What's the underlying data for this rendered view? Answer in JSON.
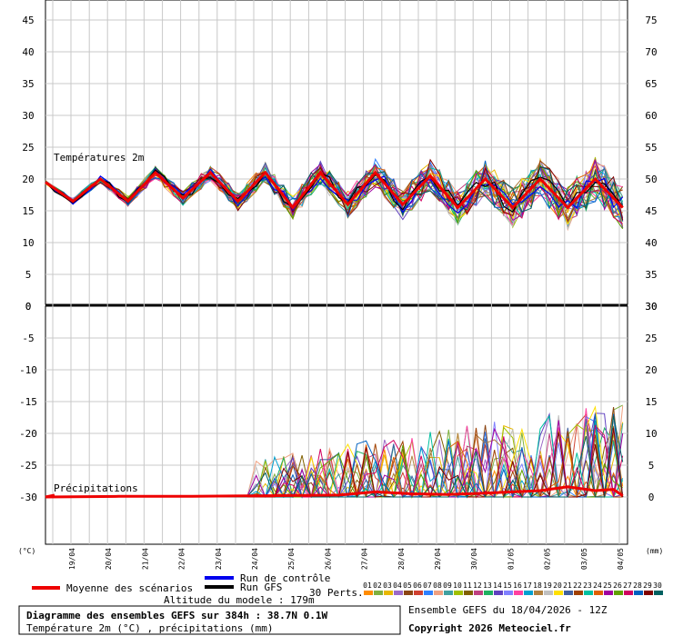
{
  "chart_data": {
    "type": "line",
    "panels": [
      {
        "name": "temperature",
        "label": "Températures 2m",
        "left_axis_ticks": [
          "45",
          "40",
          "35",
          "30",
          "25",
          "20",
          "15",
          "10",
          "5",
          "0"
        ],
        "right_axis_ticks": [
          "75",
          "70",
          "65",
          "60",
          "55",
          "50",
          "45",
          "40",
          "35",
          "30"
        ],
        "ylim": [
          0,
          47
        ],
        "series": [
          {
            "name": "Moyenne des scénarios",
            "color": "#ee0000",
            "x": [
              0,
              0.75,
              1.5,
              2.25,
              3,
              3.75,
              4.5,
              5.25,
              6,
              6.75,
              7.5,
              8.25,
              9,
              9.75,
              10.5,
              11.25,
              12,
              12.75,
              13.5,
              14.25,
              15,
              15.75
            ],
            "values": [
              19.5,
              16.5,
              20,
              16.5,
              21,
              17,
              21,
              16.5,
              21,
              15.5,
              21,
              16,
              21,
              16,
              20.5,
              15.5,
              20,
              15.5,
              20,
              15.5,
              20,
              15.5
            ]
          }
        ]
      },
      {
        "name": "precipitation",
        "label": "Précipitations",
        "left_axis_ticks": [
          "0",
          "-5",
          "-10",
          "-15",
          "-20",
          "-25",
          "-30"
        ],
        "right_axis_ticks": [
          "30",
          "25",
          "20",
          "15",
          "10",
          "5",
          "0"
        ],
        "ylim": [
          0,
          30
        ],
        "series": [
          {
            "name": "Moyenne des scénarios",
            "color": "#ee0000",
            "x": [
              0,
              2,
              4,
              6,
              8,
              9,
              10,
              11,
              12,
              12.75,
              13.5,
              14.25,
              15,
              15.5,
              15.75
            ],
            "values": [
              0,
              0.1,
              0.1,
              0.2,
              0.3,
              0.8,
              0.5,
              0.4,
              0.6,
              0.8,
              1.0,
              1.6,
              1.0,
              1.2,
              0.2
            ]
          }
        ]
      }
    ],
    "x_ticks": [
      "19/04",
      "20/04",
      "21/04",
      "22/04",
      "23/04",
      "24/04",
      "25/04",
      "26/04",
      "27/04",
      "28/04",
      "29/04",
      "30/04",
      "01/05",
      "02/05",
      "03/05",
      "04/05"
    ],
    "left_unit": "(°C)",
    "right_unit": "(mm)"
  },
  "legend": {
    "mean": "Moyenne des scénarios",
    "control": "Run de contrôle",
    "gfs": "Run GFS",
    "perts_label": "30 Perts.",
    "perts": [
      "01",
      "02",
      "03",
      "04",
      "05",
      "06",
      "07",
      "08",
      "09",
      "10",
      "11",
      "12",
      "13",
      "14",
      "15",
      "16",
      "17",
      "18",
      "19",
      "20",
      "21",
      "22",
      "23",
      "24",
      "25",
      "26",
      "27",
      "28",
      "29",
      "30"
    ],
    "pert_colors": [
      "#ff8c00",
      "#7fb03f",
      "#e8b800",
      "#9c6ac8",
      "#8b4513",
      "#d04030",
      "#2f80ff",
      "#f0a080",
      "#40a0a0",
      "#a0c000",
      "#806000",
      "#c04080",
      "#20b060",
      "#6040c0",
      "#8080ff",
      "#ff40a0",
      "#00a0d0",
      "#b08040",
      "#c0c0c0",
      "#ffe000",
      "#4060a0",
      "#a04000",
      "#00c0a0",
      "#e06000",
      "#a000a0",
      "#60a000",
      "#d00060",
      "#0060c0",
      "#800000",
      "#006060"
    ],
    "colors": {
      "mean": "#ee0000",
      "control": "#0000ee",
      "gfs": "#000000"
    }
  },
  "footer": {
    "altitude": "Altitude du modele : 179m",
    "title": "Diagramme des ensembles GEFS sur 384h : 38.7N 0.1W",
    "subtitle": "Température 2m (°C) , précipitations (mm)",
    "ensemble": "Ensemble GEFS du 18/04/2026 - 12Z",
    "copyright": "Copyright 2026 Meteociel.fr"
  }
}
